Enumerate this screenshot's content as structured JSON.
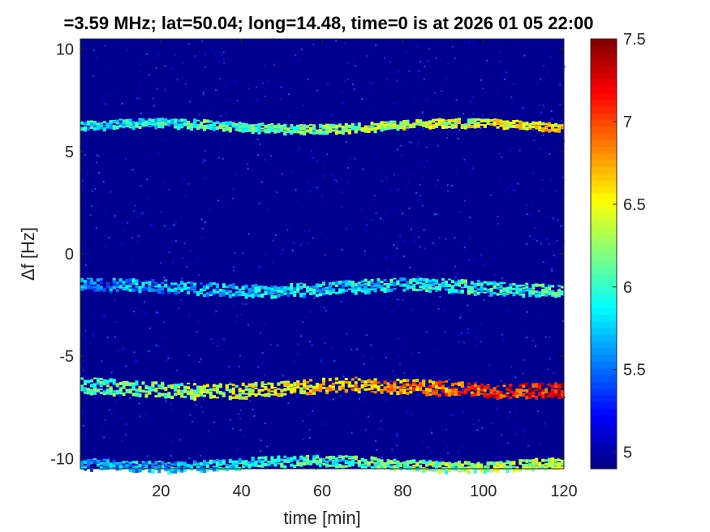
{
  "chart_data": {
    "type": "heatmap",
    "title": "=3.59 MHz;  lat=50.04; long=14.48, time=0 is at 2026 01 05 22:00",
    "xlabel": "time [min]",
    "ylabel": "Δf [Hz]",
    "xlim": [
      0,
      120
    ],
    "ylim": [
      -10.5,
      10.5
    ],
    "x_ticks": [
      20,
      40,
      60,
      80,
      100,
      120
    ],
    "y_ticks": [
      -10,
      -5,
      0,
      5,
      10
    ],
    "colormap": "jet",
    "colorbar": {
      "range": [
        4.9,
        7.5
      ],
      "ticks": [
        5,
        5.5,
        6,
        6.5,
        7,
        7.5
      ],
      "tick_labels": [
        "5",
        "5.5",
        "6",
        "6.5",
        "7",
        "7.5"
      ]
    },
    "background_level": 4.95,
    "bands": [
      {
        "df": 6.3,
        "width": 0.2,
        "level_start": 5.8,
        "level_end": 6.6
      },
      {
        "df": -1.6,
        "width": 0.3,
        "level_start": 5.6,
        "level_end": 6.0
      },
      {
        "df": -6.5,
        "width": 0.35,
        "level_start": 6.0,
        "level_end": 7.2
      },
      {
        "df": -10.2,
        "width": 0.25,
        "level_start": 5.6,
        "level_end": 6.4
      }
    ]
  }
}
